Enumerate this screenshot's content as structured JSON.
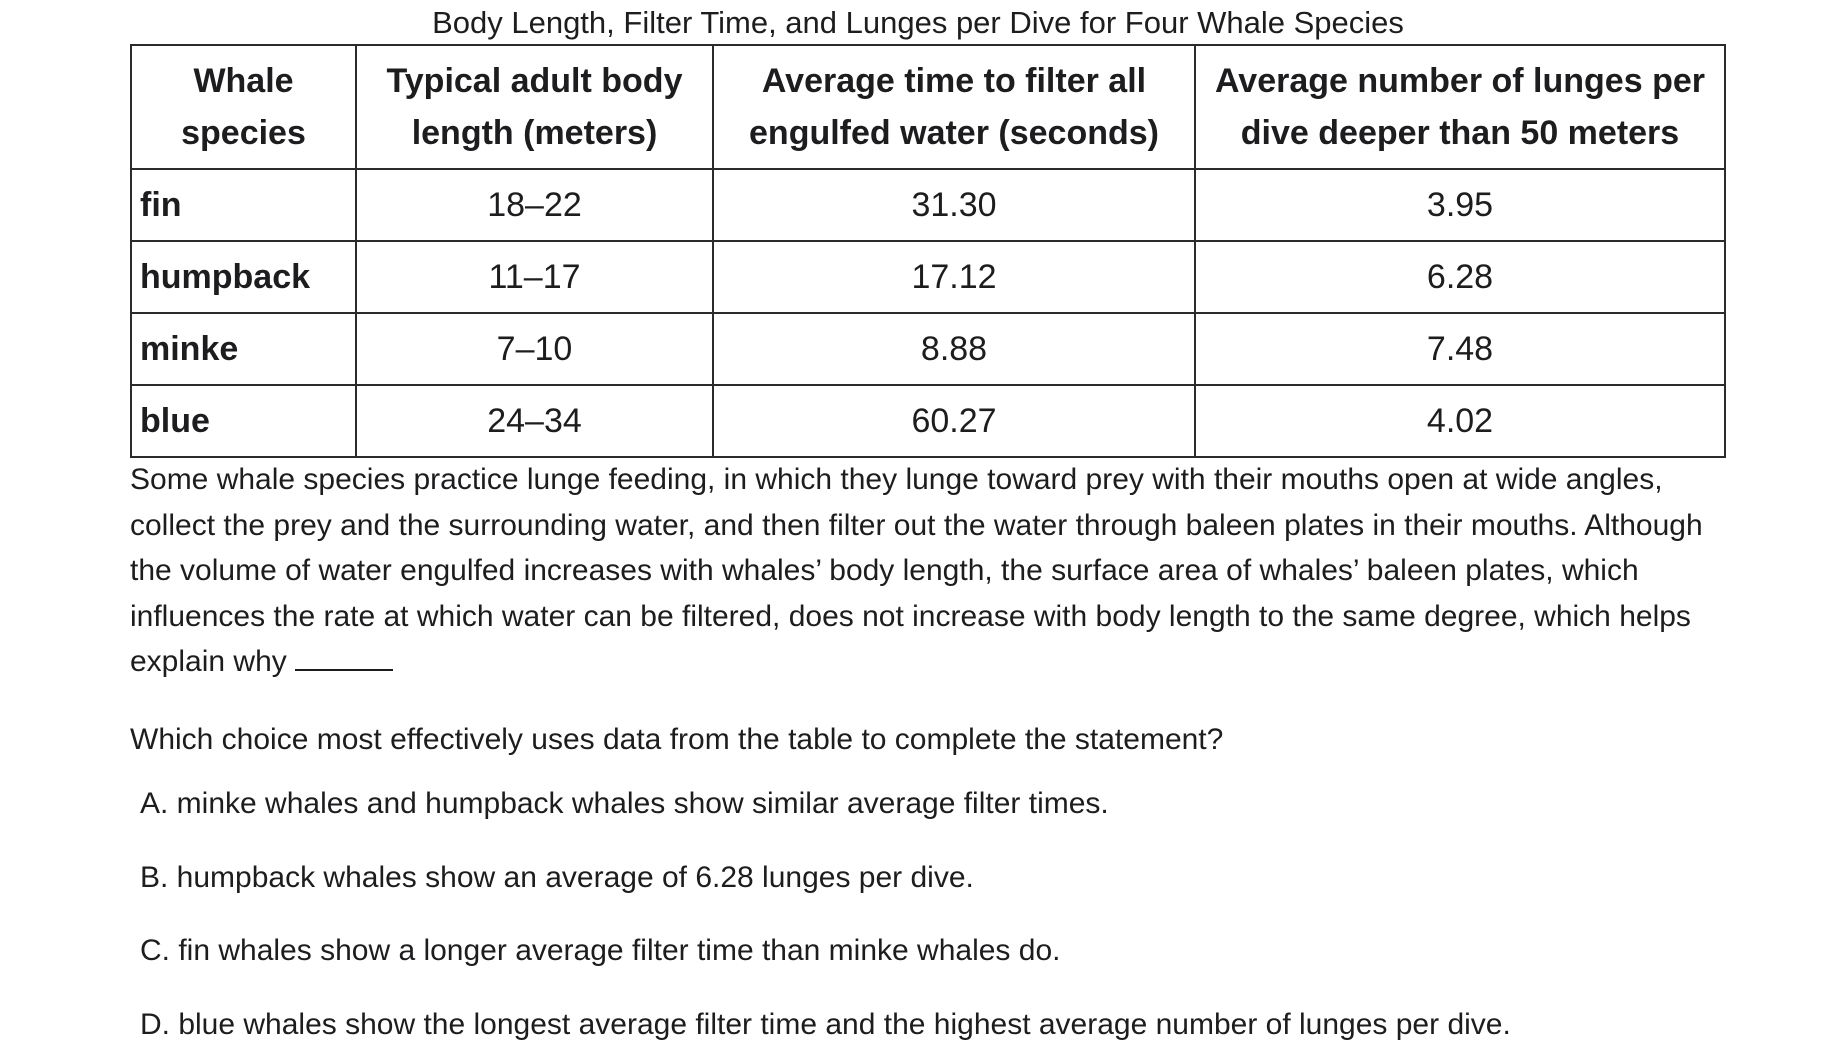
{
  "table": {
    "title": "Body Length, Filter Time, and Lunges per Dive for Four Whale Species",
    "headers": {
      "species_line1": "Whale",
      "species_line2": "species",
      "length_line1": "Typical adult body",
      "length_line2": "length (meters)",
      "filter_line1": "Average time to filter all",
      "filter_line2": "engulfed water (seconds)",
      "lunges_line1": "Average number of lunges per",
      "lunges_line2": "dive deeper than 50 meters"
    },
    "rows": [
      {
        "species": "fin",
        "length": "18–22",
        "filter_time": "31.30",
        "lunges": "3.95"
      },
      {
        "species": "humpback",
        "length": "11–17",
        "filter_time": "17.12",
        "lunges": "6.28"
      },
      {
        "species": "minke",
        "length": "7–10",
        "filter_time": "8.88",
        "lunges": "7.48"
      },
      {
        "species": "blue",
        "length": "24–34",
        "filter_time": "60.27",
        "lunges": "4.02"
      }
    ]
  },
  "passage": {
    "text": "Some whale species practice lunge feeding, in which they lunge toward prey with their mouths open at wide angles, collect the prey and the surrounding water, and then filter out the water through baleen plates in their mouths. Although the volume of water engulfed increases with whales’ body length, the surface area of whales’ baleen plates, which influences the rate at which water can be filtered, does not increase with body length to the same degree, which helps explain why"
  },
  "question": {
    "prompt": "Which choice most effectively uses data from the table to complete the statement?",
    "choices": [
      "A. minke whales and humpback whales show similar average filter times.",
      "B. humpback whales show an average of 6.28 lunges per dive.",
      "C. fin whales show a longer average filter time than minke whales do.",
      "D. blue whales show the longest average filter time and the highest average number of lunges per dive."
    ]
  }
}
